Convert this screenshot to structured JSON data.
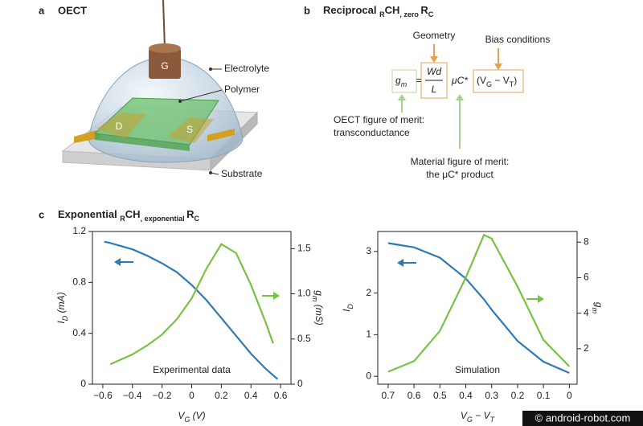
{
  "panel_a": {
    "label": "a",
    "title": "OECT",
    "gate": "G",
    "drain": "D",
    "source": "S",
    "electrolyte": "Electrolyte",
    "polymer": "Polymer",
    "substrate": "Substrate"
  },
  "panel_b": {
    "label": "b",
    "title": [
      "Reciprocal ",
      "R",
      "CH",
      ", zero ",
      "R",
      "C"
    ],
    "geometry": "Geometry",
    "bias": "Bias conditions",
    "eq_gm": [
      "g",
      "m"
    ],
    "eq_equals": "=",
    "eq_num": "Wd",
    "eq_den": "L",
    "eq_mu": "μC*",
    "eq_bias": [
      "(V",
      "G",
      " − V",
      "T",
      ")"
    ],
    "oect_merit": [
      "OECT figure of merit:",
      "transconductance"
    ],
    "material_merit": [
      "Material figure of merit:",
      "the μC* product"
    ]
  },
  "panel_c": {
    "label": "c",
    "title": [
      "Exponential ",
      "R",
      "CH",
      ", exponential ",
      "R",
      "C"
    ]
  },
  "chart_data": [
    {
      "type": "line",
      "annotation": "Experimental data",
      "xlabel": [
        "V",
        "G",
        " (V)"
      ],
      "ylabel": [
        "I",
        "D",
        " (mA)"
      ],
      "y2label": [
        "g",
        "m",
        " (mS)"
      ],
      "x": [
        -0.59,
        -0.55,
        -0.4,
        -0.3,
        -0.2,
        -0.1,
        0,
        0.1,
        0.2,
        0.3,
        0.4,
        0.5,
        0.55,
        0.58
      ],
      "xlim": [
        -0.67,
        0.67
      ],
      "xticks": [
        {
          "value": -0.6,
          "label": "−0.6"
        },
        {
          "value": -0.4,
          "label": "−0.4"
        },
        {
          "value": -0.2,
          "label": "−0.2"
        },
        0,
        0.2,
        0.4,
        0.6
      ],
      "ylim": [
        0,
        1.2
      ],
      "yticks": [
        0,
        0.4,
        0.8,
        1.2
      ],
      "y2lim": [
        0,
        1.69
      ],
      "y2ticks": [
        0,
        0.5,
        {
          "value": 1,
          "label": "1.0"
        },
        1.5
      ],
      "series": [
        {
          "color": "#2e7bb4",
          "values": [
            1.12,
            1.11,
            1.06,
            1.01,
            0.95,
            0.88,
            0.78,
            0.66,
            0.52,
            0.38,
            0.24,
            0.12,
            0.07,
            0.04
          ]
        },
        {
          "color": "#7ac143",
          "axis": "y2",
          "values": [
            null,
            0.22,
            0.33,
            0.43,
            0.55,
            0.72,
            0.95,
            1.28,
            1.55,
            1.45,
            1.1,
            0.68,
            0.45,
            null
          ]
        }
      ]
    },
    {
      "type": "line",
      "annotation": "Simulation",
      "xlabel": [
        "V",
        "G",
        " − V",
        "T"
      ],
      "ylabel": [
        "I",
        "D"
      ],
      "y2label": [
        "g",
        "m"
      ],
      "x": [
        0.7,
        0.6,
        0.5,
        0.4,
        0.33,
        0.3,
        0.2,
        0.1,
        0
      ],
      "xlim": [
        0.74,
        -0.03
      ],
      "xticks": [
        0.7,
        0.6,
        0.5,
        0.4,
        0.3,
        0.2,
        0.1,
        0
      ],
      "ylim": [
        -0.19,
        3.48
      ],
      "yticks": [
        0,
        1,
        2,
        3
      ],
      "y2lim": [
        0,
        8.6
      ],
      "y2ticks": [
        2,
        4,
        6,
        8
      ],
      "series": [
        {
          "color": "#2e7bb4",
          "values": [
            3.2,
            3.1,
            2.85,
            2.35,
            1.85,
            1.6,
            0.85,
            0.35,
            0.08
          ]
        },
        {
          "color": "#7ac143",
          "axis": "y2",
          "values": [
            0.7,
            1.3,
            3.0,
            6.0,
            8.4,
            8.2,
            5.5,
            2.5,
            1.0
          ]
        }
      ]
    }
  ],
  "watermark": "© android-robot.com"
}
